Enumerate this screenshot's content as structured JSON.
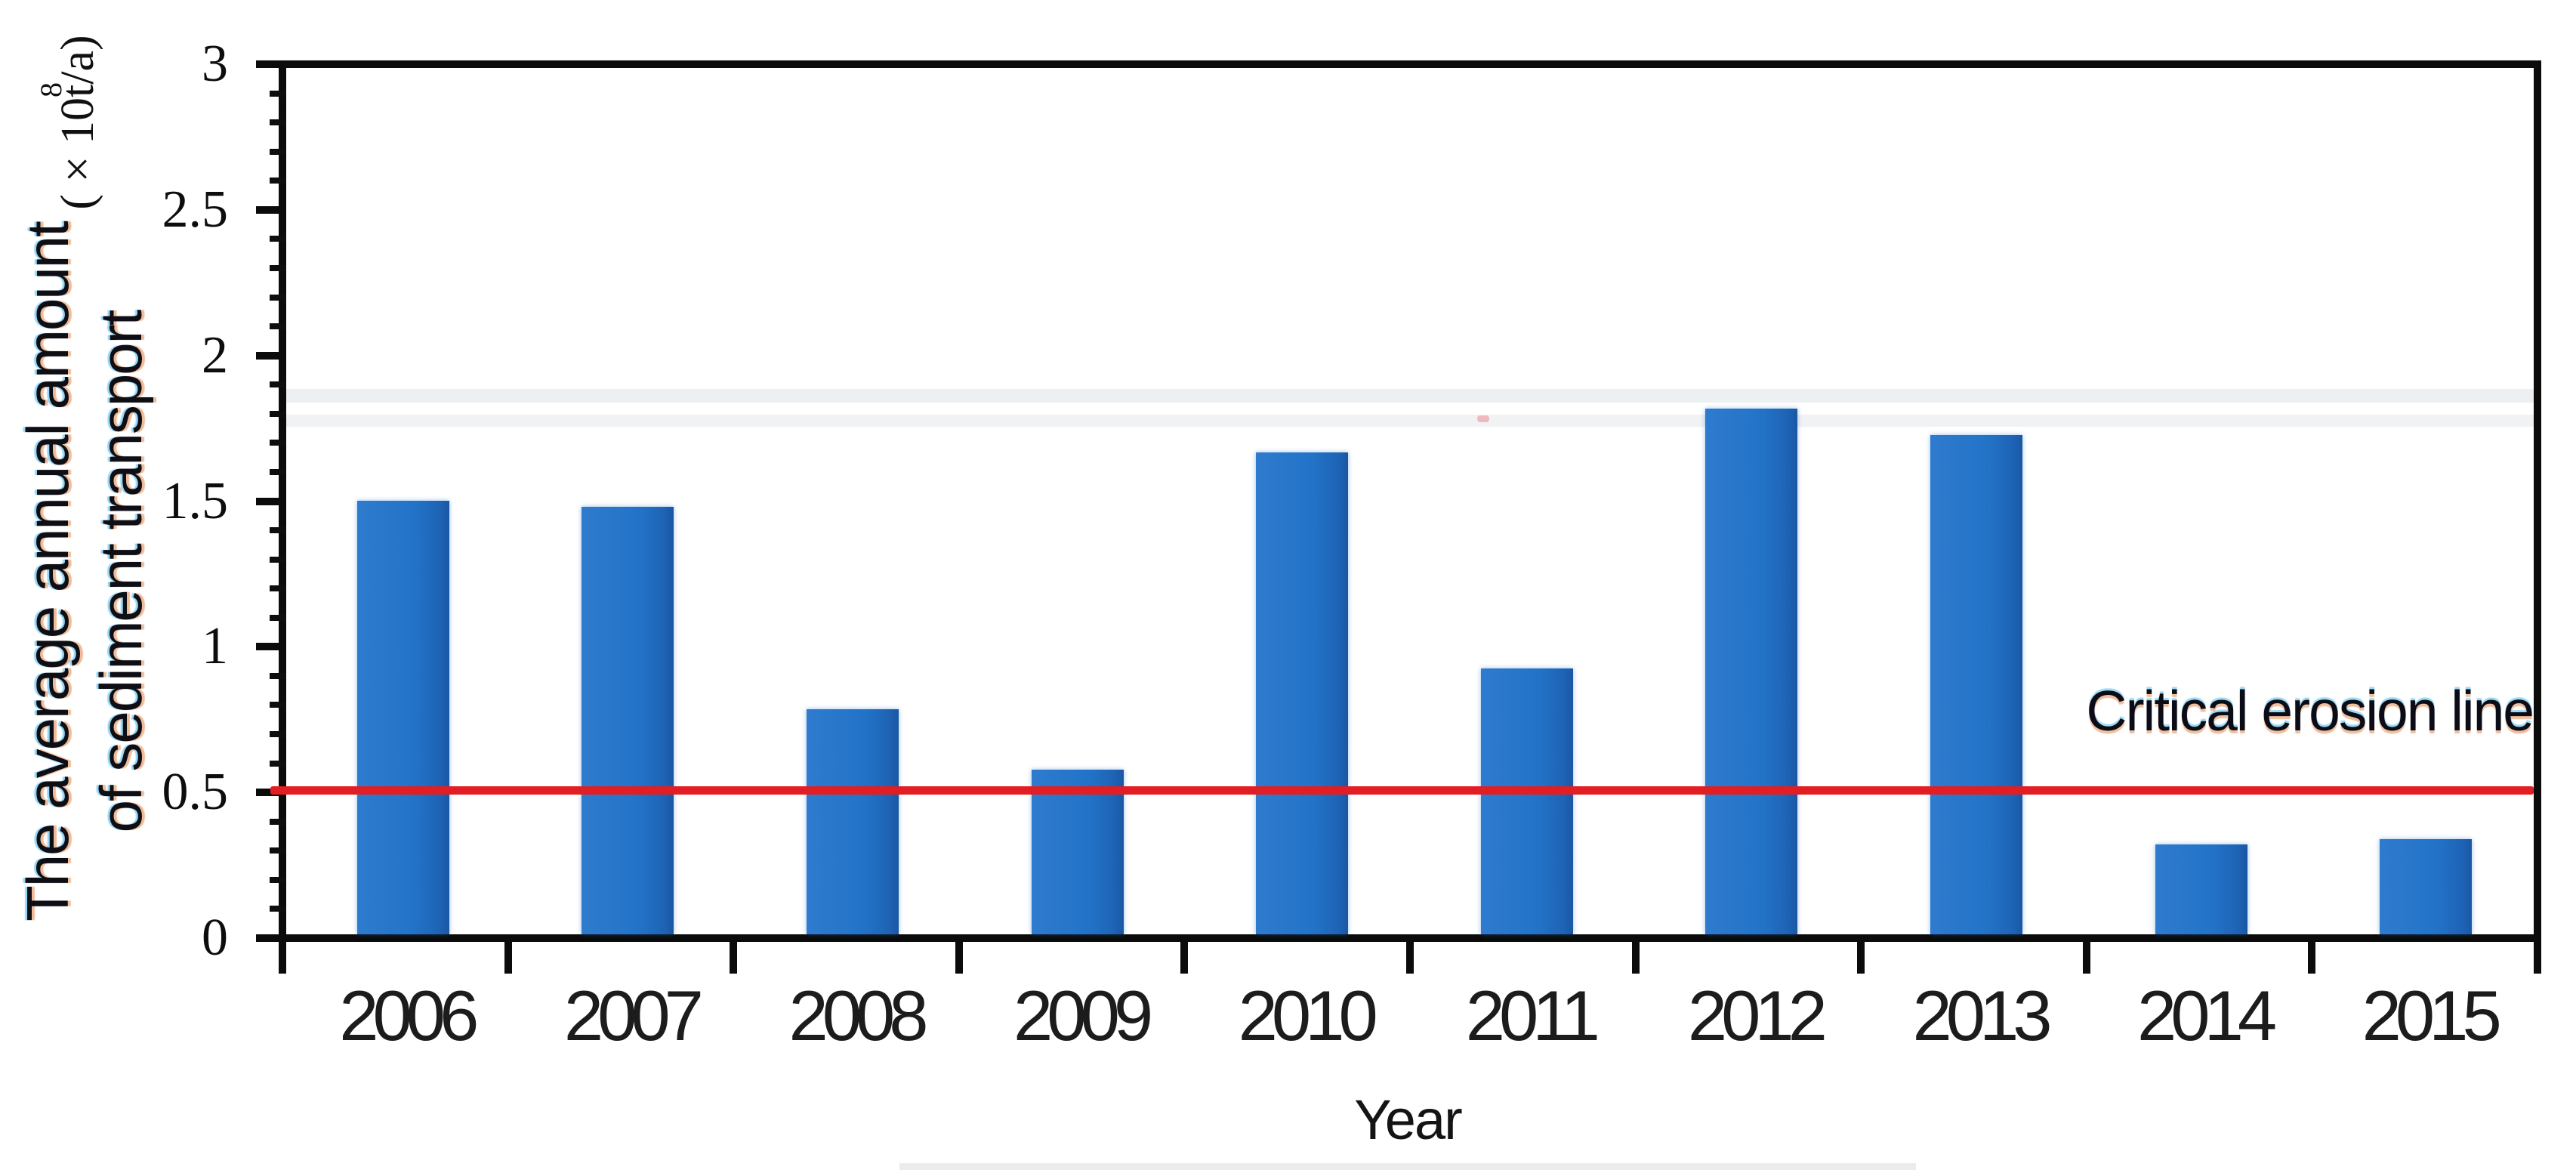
{
  "chart_data": {
    "type": "bar",
    "title": "",
    "xlabel": "Year",
    "ylabel_line1": "The average annual amount",
    "ylabel_line2": "of sediment transport",
    "y_unit": "( × 10⁸t/a)",
    "y_unit_prefix": "( × 10",
    "y_unit_sup": "8",
    "y_unit_suffix": "t/a)",
    "categories": [
      "2006",
      "2007",
      "2008",
      "2009",
      "2010",
      "2011",
      "2012",
      "2013",
      "2014",
      "2015"
    ],
    "values": [
      1.5,
      1.48,
      0.78,
      0.57,
      1.67,
      0.92,
      1.82,
      1.73,
      0.31,
      0.33
    ],
    "ylim": [
      0,
      3
    ],
    "y_major_step": 0.5,
    "y_minor_step": 0.1,
    "y_tick_values": [
      0,
      0.5,
      1,
      1.5,
      2,
      2.5,
      3
    ],
    "y_tick_labels": [
      "0",
      "0.5",
      "1",
      "1.5",
      "2",
      "2.5",
      "3"
    ],
    "reference_line": {
      "label": "Critical erosion line",
      "value": 0.5,
      "color": "#e11e23"
    },
    "bar_color": "#2273c8",
    "axis_color": "#0b0b0b",
    "legend": "none",
    "grid": "off"
  }
}
